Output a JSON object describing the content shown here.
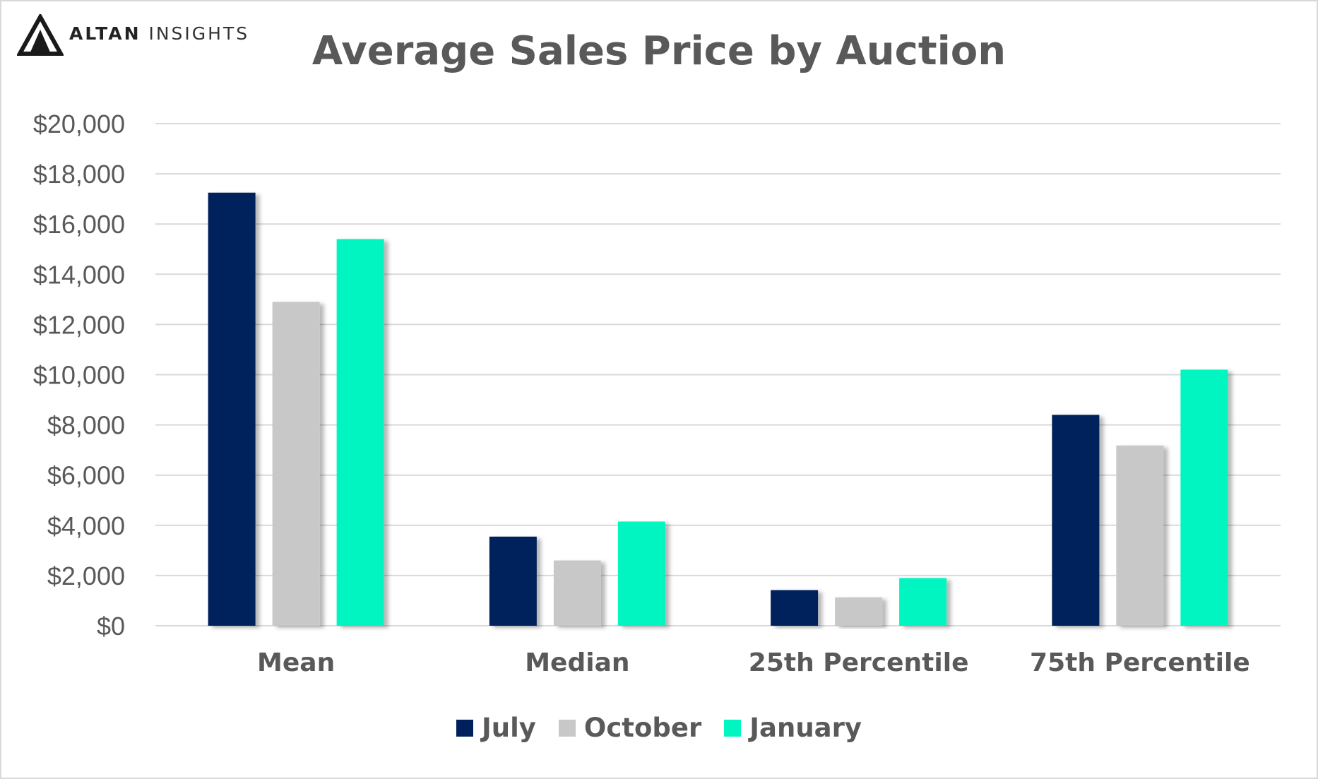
{
  "brand": {
    "name_strong": "ALTAN",
    "name_light": "INSIGHTS"
  },
  "chart_data": {
    "type": "bar",
    "title": "Average Sales Price by Auction",
    "xlabel": "",
    "ylabel": "",
    "categories": [
      "Mean",
      "Median",
      "25th Percentile",
      "75th Percentile"
    ],
    "series": [
      {
        "name": "July",
        "color": "#00205b",
        "values": [
          17250,
          3550,
          1420,
          8400
        ]
      },
      {
        "name": "October",
        "color": "#c8c8c8",
        "values": [
          12900,
          2600,
          1130,
          7180
        ]
      },
      {
        "name": "January",
        "color": "#00f5c0",
        "values": [
          15400,
          4150,
          1900,
          10200
        ]
      }
    ],
    "ylim": [
      0,
      20000
    ],
    "yticks": [
      0,
      2000,
      4000,
      6000,
      8000,
      10000,
      12000,
      14000,
      16000,
      18000,
      20000
    ],
    "ytick_labels": [
      "$0",
      "$2,000",
      "$4,000",
      "$6,000",
      "$8,000",
      "$10,000",
      "$12,000",
      "$14,000",
      "$16,000",
      "$18,000",
      "$20,000"
    ],
    "grid": true,
    "legend_position": "bottom"
  }
}
